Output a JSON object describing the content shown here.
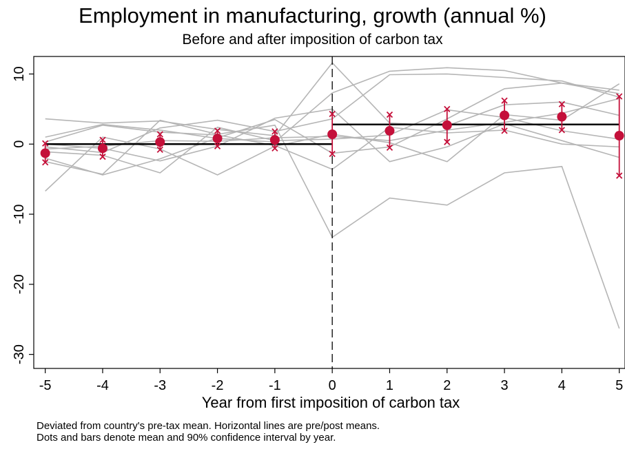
{
  "chart_data": {
    "type": "line",
    "title": "Employment in manufacturing, growth (annual %)",
    "subtitle": "Before and after imposition of carbon tax",
    "xlabel": "Year from first imposition of carbon tax",
    "ylabel": "",
    "notes": [
      "Deviated from country's pre-tax mean. Horizontal lines are pre/post means.",
      "Dots and bars denote mean and 90% confidence interval by year."
    ],
    "x": [
      -5,
      -4,
      -3,
      -2,
      -1,
      0,
      1,
      2,
      3,
      4,
      5
    ],
    "xticks": [
      "-5",
      "-4",
      "-3",
      "-2",
      "-1",
      "0",
      "1",
      "2",
      "3",
      "4",
      "5"
    ],
    "yticks": [
      "10",
      "0",
      "-10",
      "-20",
      "-30"
    ],
    "ytick_values": [
      10,
      0,
      -10,
      -20,
      -30
    ],
    "xlim": [
      -5.2,
      5.1
    ],
    "ylim": [
      -32,
      12.5
    ],
    "event_line_x": 0,
    "pre_mean": {
      "x": [
        -5,
        0
      ],
      "y": 0
    },
    "post_mean": {
      "x": [
        0,
        5
      ],
      "y": 2.8
    },
    "mean": [
      -1.3,
      -0.6,
      0.3,
      0.8,
      0.6,
      1.4,
      1.9,
      2.7,
      4.1,
      3.9,
      1.2
    ],
    "ci_low": [
      -2.6,
      -1.8,
      -0.8,
      -0.3,
      -0.6,
      -1.4,
      -0.5,
      0.3,
      1.9,
      2.0,
      -4.5
    ],
    "ci_high": [
      0.1,
      0.6,
      1.4,
      1.9,
      1.8,
      4.3,
      4.2,
      5.0,
      6.2,
      5.7,
      6.8
    ],
    "country_series": [
      [
        3.6,
        3.0,
        3.3,
        2.1,
        1.2,
        11.6,
        3.0,
        2.6,
        5.6,
        6.0,
        4.1
      ],
      [
        1.0,
        2.8,
        2.0,
        0.8,
        0.3,
        7.3,
        10.4,
        10.9,
        10.5,
        8.7,
        7.7
      ],
      [
        -0.4,
        -1.2,
        2.3,
        3.4,
        1.8,
        3.6,
        9.9,
        10.0,
        9.5,
        9.0,
        6.7
      ],
      [
        -2.5,
        -4.3,
        3.4,
        1.4,
        2.7,
        -13.3,
        -7.7,
        -8.7,
        -4.1,
        -3.2,
        -26.3
      ],
      [
        -6.7,
        1.0,
        -0.7,
        -4.4,
        -0.3,
        1.4,
        0.2,
        -2.5,
        4.2,
        3.4,
        8.6
      ],
      [
        -2.0,
        -4.4,
        -2.1,
        0.9,
        3.5,
        -1.3,
        -0.4,
        3.6,
        7.9,
        8.7,
        7.2
      ],
      [
        0.0,
        -0.6,
        -2.4,
        -0.3,
        3.7,
        5.0,
        -2.5,
        -0.4,
        2.9,
        0.5,
        -1.9
      ],
      [
        -1.1,
        -1.6,
        -4.1,
        2.4,
        0.5,
        0.7,
        1.3,
        4.9,
        3.8,
        1.9,
        0.7
      ],
      [
        0.3,
        2.7,
        1.7,
        1.3,
        -0.2,
        -3.6,
        2.4,
        1.6,
        2.0,
        0.0,
        -0.4
      ],
      [
        -0.7,
        -0.3,
        0.5,
        0.4,
        0.9,
        1.1,
        0.5,
        2.0,
        3.1,
        4.4,
        6.5
      ]
    ],
    "grid": false,
    "colors": {
      "country": "#b5b5b5",
      "mean": "#c4103a",
      "ci": "#c4103a",
      "means_line": "#000000"
    }
  }
}
